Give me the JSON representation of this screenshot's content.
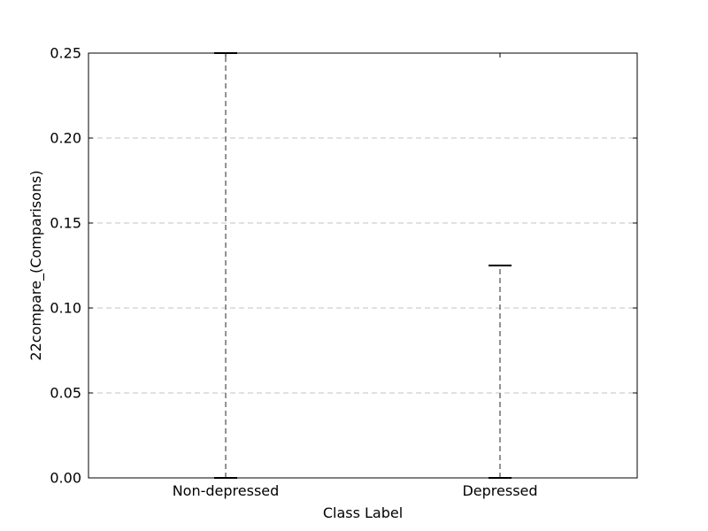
{
  "chart_data": {
    "type": "box",
    "categories": [
      "Non-depressed",
      "Depressed"
    ],
    "series": [
      {
        "values": [
          {
            "min": 0.0,
            "q1": 0.0,
            "median": 0.0,
            "q3": 0.0,
            "max": 0.25
          },
          {
            "min": 0.0,
            "q1": 0.0,
            "median": 0.0,
            "q3": 0.0,
            "max": 0.125
          }
        ]
      }
    ],
    "title": "",
    "xlabel": "Class Label",
    "ylabel": "22compare_(Comparisons)",
    "ylim": [
      0.0,
      0.25
    ],
    "yticks": [
      "0.00",
      "0.05",
      "0.10",
      "0.15",
      "0.20",
      "0.25"
    ],
    "ytick_values": [
      0.0,
      0.05,
      0.1,
      0.15,
      0.2,
      0.25
    ],
    "grid": "horizontal-dashed",
    "legend": "none",
    "colors": {
      "whisker": "#6e6e6e",
      "cap": "#000000",
      "grid": "#b0b0b0",
      "axes": "#000000"
    }
  }
}
